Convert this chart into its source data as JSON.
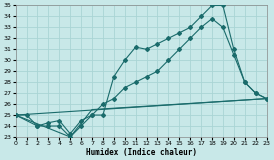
{
  "xlabel": "Humidex (Indice chaleur)",
  "bg_color": "#c8e8e8",
  "line_color": "#1a6b6b",
  "grid_color": "#aad4d4",
  "xlim": [
    0,
    23
  ],
  "ylim": [
    23,
    35
  ],
  "yticks": [
    23,
    24,
    25,
    26,
    27,
    28,
    29,
    30,
    31,
    32,
    33,
    34,
    35
  ],
  "xticks": [
    0,
    1,
    2,
    3,
    4,
    5,
    6,
    7,
    8,
    9,
    10,
    11,
    12,
    13,
    14,
    15,
    16,
    17,
    18,
    19,
    20,
    21,
    22,
    23
  ],
  "s1x": [
    0,
    1,
    2,
    3,
    4,
    5,
    6,
    7,
    8,
    9,
    10,
    11,
    12,
    13,
    14,
    15,
    16,
    17,
    18,
    19,
    20,
    21,
    22,
    23
  ],
  "s1y": [
    25,
    25,
    24,
    24,
    24,
    23,
    24,
    25,
    25,
    28.5,
    30,
    31.2,
    31,
    31.5,
    32,
    32.5,
    33,
    34,
    35,
    35,
    31,
    28,
    27,
    26.5
  ],
  "s2x": [
    0,
    2,
    3,
    4,
    5,
    6,
    7,
    8,
    9,
    10,
    11,
    12,
    13,
    14,
    15,
    16,
    17,
    18,
    19,
    20,
    21,
    22,
    23
  ],
  "s2y": [
    25,
    24,
    24.3,
    24.5,
    23.3,
    24.5,
    25,
    26,
    26.5,
    27.5,
    28,
    28.5,
    29,
    30,
    31,
    32,
    33,
    33.8,
    33,
    30.5,
    28,
    27,
    26.5
  ],
  "s3x": [
    0,
    23
  ],
  "s3y": [
    25,
    26.5
  ],
  "s4x": [
    0,
    5,
    7,
    23
  ],
  "s4y": [
    25,
    23,
    25.5,
    26.5
  ]
}
